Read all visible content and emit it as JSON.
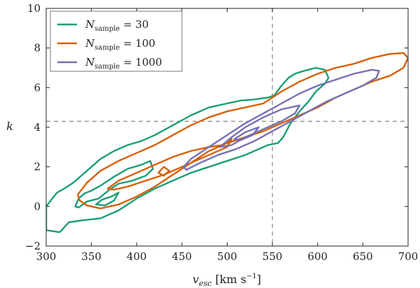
{
  "chart_data": {
    "type": "contour",
    "xlabel": "v_esc [km s⁻¹]",
    "xlabel_main": "v",
    "xlabel_sub": "esc",
    "xlabel_unit": "[km s",
    "xlabel_unit_exp": "−1",
    "xlabel_unit_close": "]",
    "ylabel": "k",
    "xlim": [
      300,
      700
    ],
    "ylim": [
      -2,
      10
    ],
    "xticks": [
      300,
      350,
      400,
      450,
      500,
      550,
      600,
      650,
      700
    ],
    "yticks": [
      -2,
      0,
      2,
      4,
      6,
      8,
      10
    ],
    "reference_lines": {
      "x": 550,
      "y": 4.3
    },
    "legend": {
      "position": "top-left",
      "entries": [
        {
          "label": "N",
          "sub": "sample",
          "text": " = 30"
        },
        {
          "label": "N",
          "sub": "sample",
          "text": " = 100"
        },
        {
          "label": "N",
          "sub": "sample",
          "text": " = 1000"
        }
      ]
    },
    "series": [
      {
        "name": "N_sample = 30",
        "color": "#1b9e77",
        "contours": [
          [
            [
              300,
              0
            ],
            [
              305,
              0.3
            ],
            [
              312,
              0.7
            ],
            [
              320,
              0.9
            ],
            [
              330,
              1.2
            ],
            [
              340,
              1.6
            ],
            [
              350,
              2.0
            ],
            [
              360,
              2.4
            ],
            [
              375,
              2.8
            ],
            [
              390,
              3.1
            ],
            [
              405,
              3.3
            ],
            [
              420,
              3.6
            ],
            [
              440,
              4.1
            ],
            [
              460,
              4.6
            ],
            [
              480,
              5.0
            ],
            [
              500,
              5.2
            ],
            [
              515,
              5.35
            ],
            [
              530,
              5.4
            ],
            [
              545,
              5.5
            ],
            [
              552,
              5.6
            ],
            [
              560,
              6.1
            ],
            [
              568,
              6.5
            ],
            [
              575,
              6.7
            ],
            [
              585,
              6.85
            ],
            [
              598,
              7.0
            ],
            [
              608,
              6.9
            ],
            [
              612,
              6.5
            ],
            [
              608,
              6.2
            ],
            [
              598,
              5.8
            ],
            [
              590,
              5.3
            ],
            [
              580,
              4.8
            ],
            [
              570,
              4.2
            ],
            [
              562,
              3.5
            ],
            [
              556,
              3.2
            ],
            [
              545,
              3.1
            ],
            [
              535,
              2.9
            ],
            [
              520,
              2.6
            ],
            [
              500,
              2.3
            ],
            [
              480,
              2.0
            ],
            [
              460,
              1.7
            ],
            [
              440,
              1.3
            ],
            [
              420,
              0.9
            ],
            [
              400,
              0.4
            ],
            [
              380,
              -0.2
            ],
            [
              360,
              -0.6
            ],
            [
              340,
              -0.7
            ],
            [
              325,
              -0.8
            ],
            [
              315,
              -1.3
            ],
            [
              300,
              -1.2
            ]
          ],
          [
            [
              332,
              0
            ],
            [
              336,
              0.4
            ],
            [
              342,
              0.65
            ],
            [
              350,
              0.8
            ],
            [
              360,
              1.05
            ],
            [
              375,
              1.5
            ],
            [
              390,
              1.9
            ],
            [
              405,
              2.1
            ],
            [
              415,
              2.3
            ],
            [
              418,
              1.9
            ],
            [
              410,
              1.55
            ],
            [
              395,
              1.3
            ],
            [
              380,
              1.15
            ],
            [
              370,
              0.85
            ],
            [
              358,
              0.4
            ],
            [
              345,
              0.25
            ],
            [
              336,
              -0.05
            ]
          ],
          [
            [
              355,
              0.1
            ],
            [
              362,
              0.35
            ],
            [
              372,
              0.5
            ],
            [
              380,
              0.7
            ],
            [
              375,
              0.3
            ],
            [
              365,
              0.05
            ]
          ]
        ]
      },
      {
        "name": "N_sample = 100",
        "color": "#d95f02",
        "contours": [
          [
            [
              335,
              0.6
            ],
            [
              345,
              1.2
            ],
            [
              360,
              1.8
            ],
            [
              380,
              2.3
            ],
            [
              400,
              2.7
            ],
            [
              420,
              3.1
            ],
            [
              440,
              3.6
            ],
            [
              460,
              4.1
            ],
            [
              480,
              4.5
            ],
            [
              500,
              4.8
            ],
            [
              520,
              5.0
            ],
            [
              540,
              5.2
            ],
            [
              560,
              5.8
            ],
            [
              580,
              6.3
            ],
            [
              600,
              6.7
            ],
            [
              620,
              7.0
            ],
            [
              640,
              7.2
            ],
            [
              660,
              7.5
            ],
            [
              680,
              7.7
            ],
            [
              695,
              7.75
            ],
            [
              700,
              7.5
            ],
            [
              695,
              7.0
            ],
            [
              680,
              6.6
            ],
            [
              660,
              6.3
            ],
            [
              640,
              5.9
            ],
            [
              620,
              5.5
            ],
            [
              600,
              5.0
            ],
            [
              580,
              4.6
            ],
            [
              560,
              4.2
            ],
            [
              540,
              3.8
            ],
            [
              520,
              3.5
            ],
            [
              500,
              3.2
            ],
            [
              480,
              2.8
            ],
            [
              460,
              2.2
            ],
            [
              440,
              1.6
            ],
            [
              420,
              1.0
            ],
            [
              400,
              0.5
            ],
            [
              380,
              0.1
            ],
            [
              360,
              -0.1
            ],
            [
              345,
              0.05
            ],
            [
              337,
              0.3
            ]
          ],
          [
            [
              368,
              0.9
            ],
            [
              380,
              1.3
            ],
            [
              400,
              1.7
            ],
            [
              420,
              2.1
            ],
            [
              440,
              2.5
            ],
            [
              460,
              2.8
            ],
            [
              480,
              3.0
            ],
            [
              495,
              3.1
            ],
            [
              505,
              3.4
            ],
            [
              500,
              3.0
            ],
            [
              485,
              2.7
            ],
            [
              470,
              2.4
            ],
            [
              450,
              2.0
            ],
            [
              430,
              1.6
            ],
            [
              410,
              1.3
            ],
            [
              390,
              1.0
            ],
            [
              375,
              0.85
            ]
          ],
          [
            [
              424,
              1.7
            ],
            [
              430,
              2.0
            ],
            [
              436,
              1.8
            ],
            [
              430,
              1.55
            ]
          ]
        ]
      },
      {
        "name": "N_sample = 1000",
        "color": "#7570b3",
        "contours": [
          [
            [
              452,
              2.0
            ],
            [
              460,
              2.4
            ],
            [
              480,
              3.0
            ],
            [
              500,
              3.6
            ],
            [
              520,
              4.2
            ],
            [
              540,
              4.7
            ],
            [
              560,
              5.2
            ],
            [
              580,
              5.7
            ],
            [
              600,
              6.1
            ],
            [
              620,
              6.4
            ],
            [
              640,
              6.7
            ],
            [
              660,
              6.9
            ],
            [
              668,
              6.85
            ],
            [
              665,
              6.5
            ],
            [
              650,
              6.1
            ],
            [
              630,
              5.7
            ],
            [
              610,
              5.3
            ],
            [
              590,
              4.8
            ],
            [
              570,
              4.3
            ],
            [
              550,
              3.8
            ],
            [
              530,
              3.3
            ],
            [
              510,
              2.9
            ],
            [
              490,
              2.6
            ],
            [
              470,
              2.2
            ],
            [
              455,
              1.85
            ]
          ],
          [
            [
              492,
              3.0
            ],
            [
              505,
              3.5
            ],
            [
              520,
              4.0
            ],
            [
              540,
              4.5
            ],
            [
              560,
              4.9
            ],
            [
              580,
              5.1
            ],
            [
              575,
              4.7
            ],
            [
              560,
              4.3
            ],
            [
              540,
              3.9
            ],
            [
              520,
              3.5
            ],
            [
              505,
              3.1
            ]
          ],
          [
            [
              508,
              3.4
            ],
            [
              520,
              3.75
            ],
            [
              535,
              4.0
            ],
            [
              528,
              3.6
            ],
            [
              515,
              3.35
            ]
          ]
        ]
      }
    ]
  }
}
